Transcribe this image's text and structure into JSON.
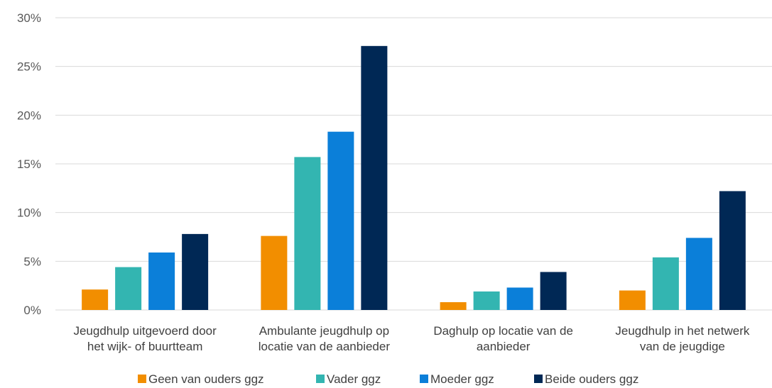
{
  "chart_data": {
    "type": "bar",
    "title": "",
    "xlabel": "",
    "ylabel": "",
    "ylim": [
      0,
      30
    ],
    "y_ticks": [
      "0%",
      "5%",
      "10%",
      "15%",
      "20%",
      "25%",
      "30%"
    ],
    "grid": true,
    "legend_position": "bottom",
    "categories": [
      [
        "Jeugdhulp uitgevoerd door",
        "het wijk- of buurtteam"
      ],
      [
        "Ambulante jeugdhulp op",
        "locatie van de aanbieder"
      ],
      [
        "Daghulp op locatie van de",
        "aanbieder"
      ],
      [
        "Jeugdhulp in het netwerk",
        "van de jeugdige"
      ]
    ],
    "series": [
      {
        "name": "Geen van ouders ggz",
        "color": "#f28e00",
        "values": [
          2.1,
          7.6,
          0.8,
          2.0
        ]
      },
      {
        "name": "Vader ggz",
        "color": "#33b5b1",
        "values": [
          4.4,
          15.7,
          1.9,
          5.4
        ]
      },
      {
        "name": "Moeder ggz",
        "color": "#0b7fd9",
        "values": [
          5.9,
          18.3,
          2.3,
          7.4
        ]
      },
      {
        "name": "Beide ouders ggz",
        "color": "#002855",
        "values": [
          7.8,
          27.1,
          3.9,
          12.2
        ]
      }
    ]
  }
}
